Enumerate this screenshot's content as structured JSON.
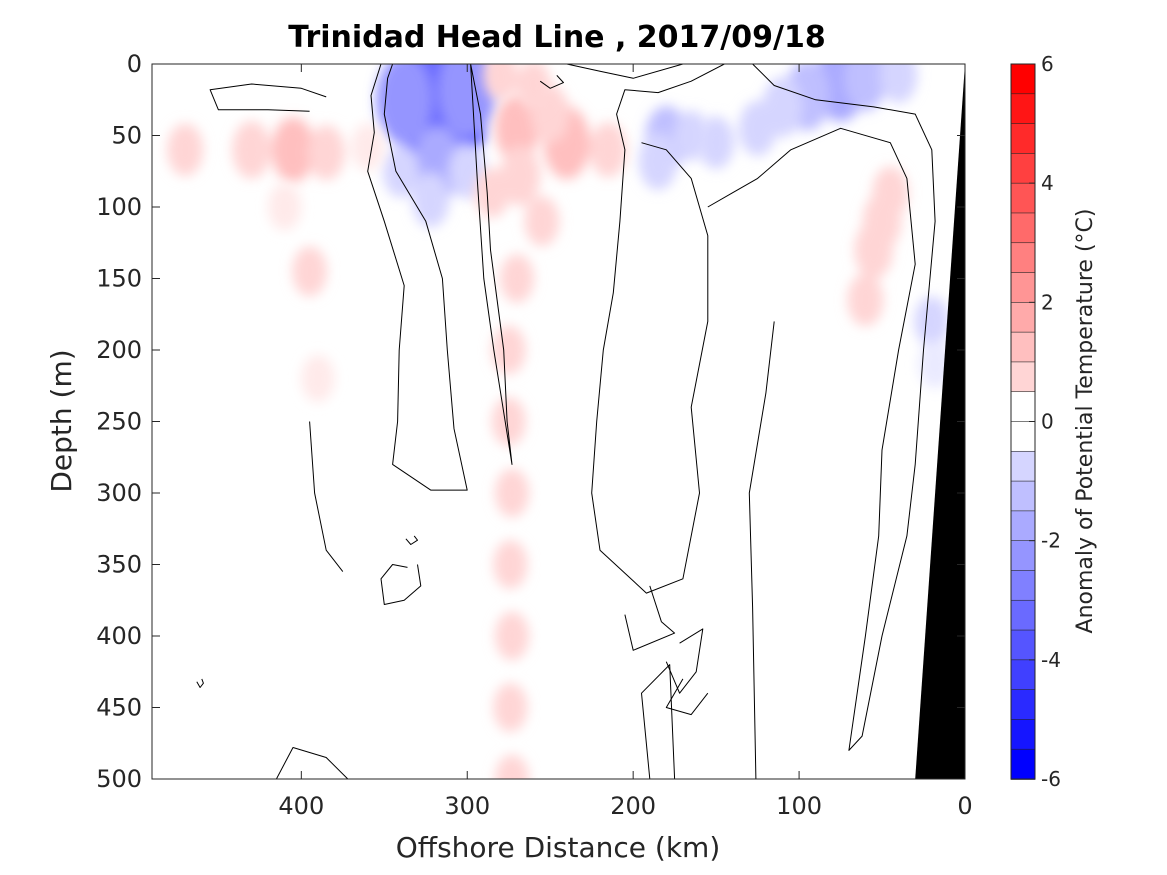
{
  "chart_data": {
    "type": "heatmap",
    "title": "Trinidad Head Line , 2017/09/18",
    "xlabel": "Offshore Distance (km)",
    "ylabel": "Depth (m)",
    "xlim": [
      490,
      0
    ],
    "ylim": [
      0,
      500
    ],
    "x_reversed": true,
    "y_reversed": true,
    "xticks": [
      400,
      300,
      200,
      100,
      0
    ],
    "yticks": [
      0,
      50,
      100,
      150,
      200,
      250,
      300,
      350,
      400,
      450,
      500
    ],
    "colorbar": {
      "label": "Anomaly of Potential Temperature (°C)",
      "range": [
        -6,
        6
      ],
      "step": 0.5,
      "ticks": [
        6,
        4,
        2,
        0,
        -2,
        -4,
        -6
      ]
    },
    "features": [
      {
        "kind": "cold",
        "anomaly": -4.5,
        "points": [
          [
            312,
            24,
            -4.5
          ],
          [
            316,
            10,
            -3.5
          ],
          [
            318,
            42,
            -3.2
          ],
          [
            300,
            18,
            -2.4
          ],
          [
            338,
            25,
            -2.2
          ],
          [
            318,
            70,
            -1.6
          ],
          [
            322,
            95,
            -0.8
          ],
          [
            300,
            75,
            -0.8
          ],
          [
            340,
            75,
            -0.7
          ]
        ]
      },
      {
        "kind": "cold",
        "anomaly": -1.8,
        "points": [
          [
            75,
            12,
            -1.8
          ],
          [
            95,
            22,
            -1.4
          ],
          [
            60,
            10,
            -1.2
          ],
          [
            110,
            30,
            -1.0
          ],
          [
            40,
            8,
            -0.8
          ],
          [
            125,
            45,
            -0.8
          ],
          [
            150,
            55,
            -0.7
          ]
        ]
      },
      {
        "kind": "cold",
        "anomaly": -1.2,
        "points": [
          [
            180,
            52,
            -1.2
          ],
          [
            185,
            68,
            -0.9
          ],
          [
            165,
            50,
            -0.6
          ]
        ]
      },
      {
        "kind": "cold",
        "anomaly": -0.6,
        "points": [
          [
            20,
            180,
            -0.6
          ],
          [
            18,
            210,
            -0.5
          ]
        ]
      },
      {
        "kind": "warm",
        "anomaly": 1.5,
        "points": [
          [
            240,
            55,
            1.5
          ],
          [
            270,
            45,
            1.3
          ],
          [
            268,
            78,
            1.0
          ],
          [
            250,
            35,
            0.9
          ],
          [
            215,
            60,
            0.8
          ],
          [
            285,
            90,
            0.6
          ],
          [
            255,
            110,
            0.6
          ],
          [
            270,
            150,
            0.55
          ],
          [
            275,
            200,
            0.55
          ]
        ]
      },
      {
        "kind": "warm",
        "anomaly": 1.2,
        "points": [
          [
            405,
            60,
            1.2
          ],
          [
            430,
            60,
            0.9
          ],
          [
            385,
            62,
            0.8
          ],
          [
            470,
            60,
            0.7
          ],
          [
            360,
            58,
            0.5
          ]
        ]
      },
      {
        "kind": "warm",
        "anomaly": 0.6,
        "points": [
          [
            260,
            15,
            0.6
          ],
          [
            280,
            8,
            0.6
          ]
        ]
      },
      {
        "kind": "warm",
        "anomaly": 0.9,
        "points": [
          [
            55,
            130,
            0.9
          ],
          [
            50,
            110,
            0.9
          ],
          [
            60,
            165,
            0.7
          ],
          [
            45,
            90,
            0.7
          ]
        ]
      },
      {
        "kind": "warm",
        "anomaly": 0.6,
        "points": [
          [
            395,
            145,
            0.6
          ],
          [
            390,
            220,
            0.5
          ],
          [
            410,
            100,
            0.5
          ]
        ]
      },
      {
        "kind": "warm",
        "anomaly": 0.55,
        "points": [
          [
            275,
            250,
            0.55
          ],
          [
            273,
            300,
            0.55
          ],
          [
            274,
            350,
            0.55
          ],
          [
            273,
            400,
            0.55
          ],
          [
            274,
            450,
            0.55
          ],
          [
            273,
            500,
            0.55
          ]
        ]
      }
    ],
    "zero_contours": [
      [
        [
          385,
          23
        ],
        [
          400,
          17
        ],
        [
          430,
          14
        ],
        [
          455,
          18
        ],
        [
          450,
          32
        ],
        [
          420,
          32
        ],
        [
          395,
          33
        ]
      ],
      [
        [
          352,
          0
        ],
        [
          358,
          22
        ],
        [
          356,
          48
        ],
        [
          360,
          75
        ],
        [
          350,
          110
        ],
        [
          338,
          155
        ],
        [
          341,
          200
        ],
        [
          342,
          250
        ],
        [
          345,
          280
        ],
        [
          322,
          298
        ],
        [
          300,
          298
        ],
        [
          308,
          255
        ],
        [
          312,
          200
        ],
        [
          315,
          150
        ],
        [
          325,
          110
        ],
        [
          343,
          75
        ],
        [
          350,
          35
        ],
        [
          348,
          10
        ],
        [
          345,
          0
        ]
      ],
      [
        [
          298,
          0
        ],
        [
          292,
          35
        ],
        [
          288,
          90
        ],
        [
          286,
          130
        ],
        [
          282,
          165
        ],
        [
          278,
          200
        ],
        [
          276,
          250
        ],
        [
          273,
          280
        ],
        [
          284,
          200
        ],
        [
          290,
          150
        ],
        [
          294,
          80
        ],
        [
          298,
          0
        ]
      ],
      [
        [
          170,
          0
        ],
        [
          200,
          10
        ],
        [
          220,
          5
        ],
        [
          240,
          0
        ]
      ],
      [
        [
          145,
          0
        ],
        [
          165,
          12
        ],
        [
          185,
          20
        ],
        [
          205,
          18
        ],
        [
          210,
          35
        ],
        [
          205,
          60
        ],
        [
          208,
          110
        ],
        [
          212,
          160
        ],
        [
          218,
          200
        ],
        [
          222,
          250
        ],
        [
          225,
          300
        ],
        [
          220,
          340
        ],
        [
          192,
          370
        ],
        [
          170,
          360
        ],
        [
          160,
          300
        ],
        [
          165,
          240
        ],
        [
          155,
          180
        ],
        [
          155,
          120
        ],
        [
          165,
          80
        ],
        [
          180,
          60
        ],
        [
          195,
          55
        ]
      ],
      [
        [
          128,
          0
        ],
        [
          115,
          15
        ],
        [
          90,
          25
        ],
        [
          55,
          30
        ],
        [
          30,
          35
        ],
        [
          20,
          60
        ],
        [
          18,
          110
        ],
        [
          25,
          200
        ],
        [
          30,
          280
        ],
        [
          35,
          330
        ],
        [
          50,
          400
        ],
        [
          62,
          470
        ],
        [
          70,
          480
        ],
        [
          60,
          400
        ],
        [
          52,
          330
        ],
        [
          50,
          270
        ],
        [
          40,
          200
        ],
        [
          30,
          140
        ],
        [
          35,
          80
        ],
        [
          45,
          55
        ],
        [
          75,
          45
        ],
        [
          105,
          60
        ],
        [
          125,
          80
        ],
        [
          140,
          90
        ],
        [
          155,
          100
        ]
      ],
      [
        [
          115,
          180
        ],
        [
          120,
          230
        ],
        [
          130,
          300
        ],
        [
          128,
          380
        ],
        [
          126,
          500
        ]
      ],
      [
        [
          190,
          500
        ],
        [
          195,
          440
        ],
        [
          178,
          420
        ],
        [
          175,
          500
        ]
      ],
      [
        [
          172,
          405
        ],
        [
          158,
          395
        ],
        [
          162,
          425
        ],
        [
          172,
          440
        ],
        [
          180,
          418
        ]
      ],
      [
        [
          395,
          250
        ],
        [
          392,
          300
        ],
        [
          385,
          340
        ],
        [
          375,
          355
        ]
      ],
      [
        [
          372,
          500
        ],
        [
          385,
          485
        ],
        [
          405,
          478
        ],
        [
          415,
          500
        ]
      ],
      [
        [
          155,
          440
        ],
        [
          165,
          455
        ],
        [
          180,
          450
        ],
        [
          170,
          430
        ]
      ],
      [
        [
          190,
          365
        ],
        [
          183,
          390
        ],
        [
          175,
          398
        ],
        [
          200,
          410
        ],
        [
          205,
          385
        ]
      ],
      [
        [
          330,
          350
        ],
        [
          328,
          365
        ],
        [
          338,
          375
        ],
        [
          350,
          378
        ],
        [
          352,
          360
        ],
        [
          345,
          350
        ],
        [
          336,
          352
        ]
      ],
      [
        [
          332,
          330
        ],
        [
          330,
          333
        ],
        [
          334,
          336
        ],
        [
          337,
          332
        ]
      ],
      [
        [
          460,
          430
        ],
        [
          459,
          433
        ],
        [
          461,
          436
        ],
        [
          463,
          432
        ]
      ],
      [
        [
          246,
          8
        ],
        [
          242,
          13
        ],
        [
          250,
          17
        ],
        [
          256,
          12
        ]
      ]
    ],
    "land": [
      [
        0,
        0
      ],
      [
        0,
        500
      ],
      [
        30,
        500
      ]
    ]
  }
}
